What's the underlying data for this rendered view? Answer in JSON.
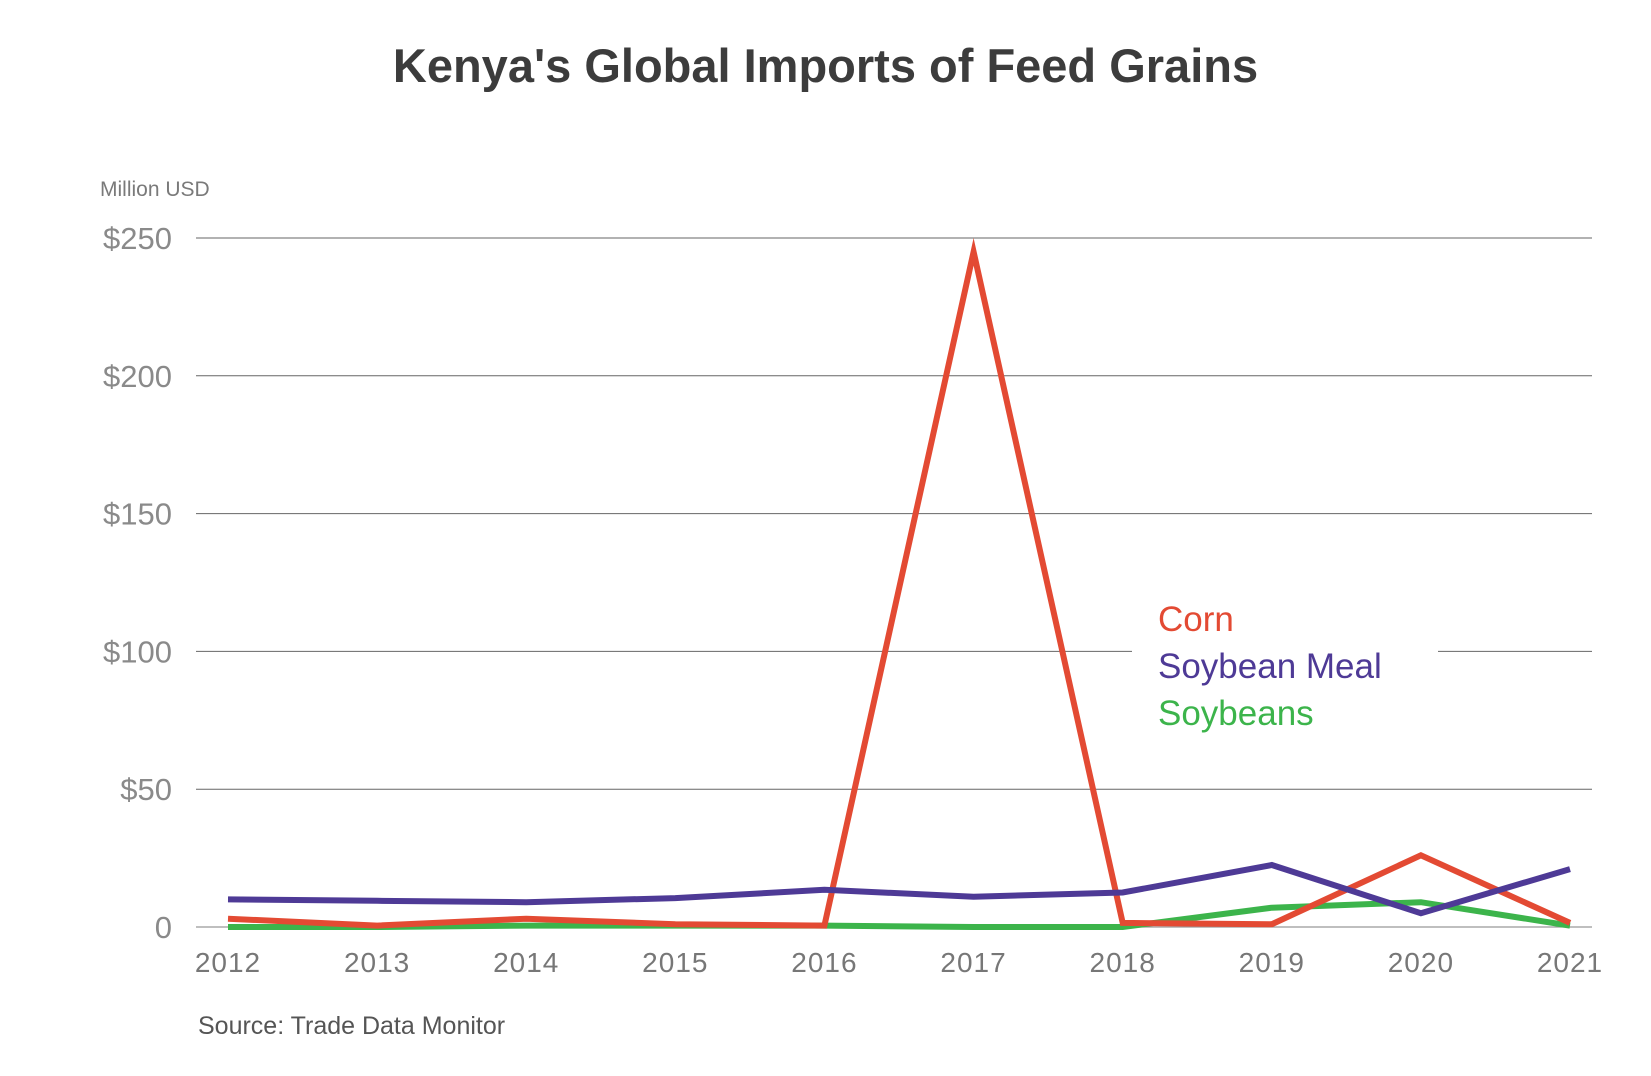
{
  "chart_data": {
    "type": "line",
    "title": "Kenya's Global Imports of Feed Grains",
    "ylabel": "Million USD",
    "xlabel": "",
    "source": "Source: Trade Data Monitor",
    "x": [
      "2012",
      "2013",
      "2014",
      "2015",
      "2016",
      "2017",
      "2018",
      "2019",
      "2020",
      "2021"
    ],
    "ylim": [
      0,
      250
    ],
    "yticks": [
      {
        "value": 0,
        "label": "0"
      },
      {
        "value": 50,
        "label": "$50"
      },
      {
        "value": 100,
        "label": "$100"
      },
      {
        "value": 150,
        "label": "$150"
      },
      {
        "value": 200,
        "label": "$200"
      },
      {
        "value": 250,
        "label": "$250"
      }
    ],
    "grid": true,
    "legend_position": "right",
    "series": [
      {
        "name": "Corn",
        "color": "#e34a33",
        "values": [
          3,
          0.5,
          3,
          1,
          0.5,
          245,
          1.5,
          1,
          26,
          1.5
        ]
      },
      {
        "name": "Soybean Meal",
        "color": "#4e3a96",
        "values": [
          10,
          9.5,
          9,
          10.5,
          13.5,
          11,
          12.5,
          22.5,
          5,
          21
        ]
      },
      {
        "name": "Soybeans",
        "color": "#3cb44b",
        "values": [
          0,
          0,
          0.5,
          0.5,
          0.5,
          0,
          0,
          7,
          9,
          0.5
        ]
      }
    ]
  }
}
